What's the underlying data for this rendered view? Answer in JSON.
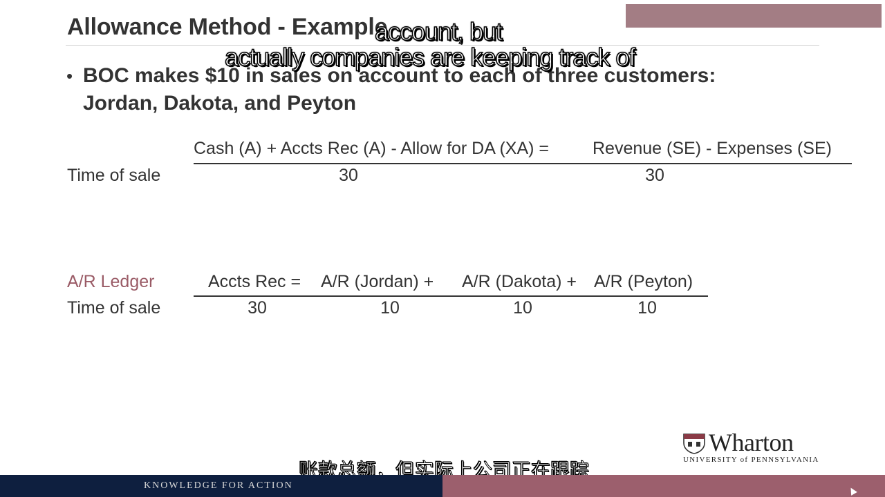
{
  "slide": {
    "title": "Allowance Method - Example",
    "bullet": {
      "line1": "BOC makes $10 in sales on account to each of three customers:",
      "line2": "Jordan, Dakota, and Peyton"
    },
    "equation": {
      "header": "Cash (A) + Accts Rec (A) - Allow for DA (XA) =",
      "header_right": "Revenue (SE) - Expenses (SE)",
      "row_label": "Time of sale",
      "accts_rec_value": "30",
      "revenue_value": "30"
    },
    "ledger": {
      "label": "A/R Ledger",
      "col_accts_rec": "Accts Rec =",
      "col_jordan": "A/R (Jordan) +",
      "col_dakota": "A/R (Dakota) +",
      "col_peyton": "A/R (Peyton)",
      "row_label": "Time of sale",
      "val_accts_rec": "30",
      "val_jordan": "10",
      "val_dakota": "10",
      "val_peyton": "10"
    }
  },
  "subtitles": {
    "en_line1": "account, but",
    "en_line2": "actually companies are keeping track of",
    "zh": "账款总额，但实际上公司正在跟踪"
  },
  "footer": {
    "tagline": "KNOWLEDGE FOR ACTION"
  },
  "logo": {
    "wordmark": "Wharton",
    "subline": "UNIVERSITY of PENNSYLVANIA"
  },
  "colors": {
    "footer_navy": "#0e1f3f",
    "footer_maroon": "#9c5f6d",
    "ledger_label": "#9a5b66"
  }
}
